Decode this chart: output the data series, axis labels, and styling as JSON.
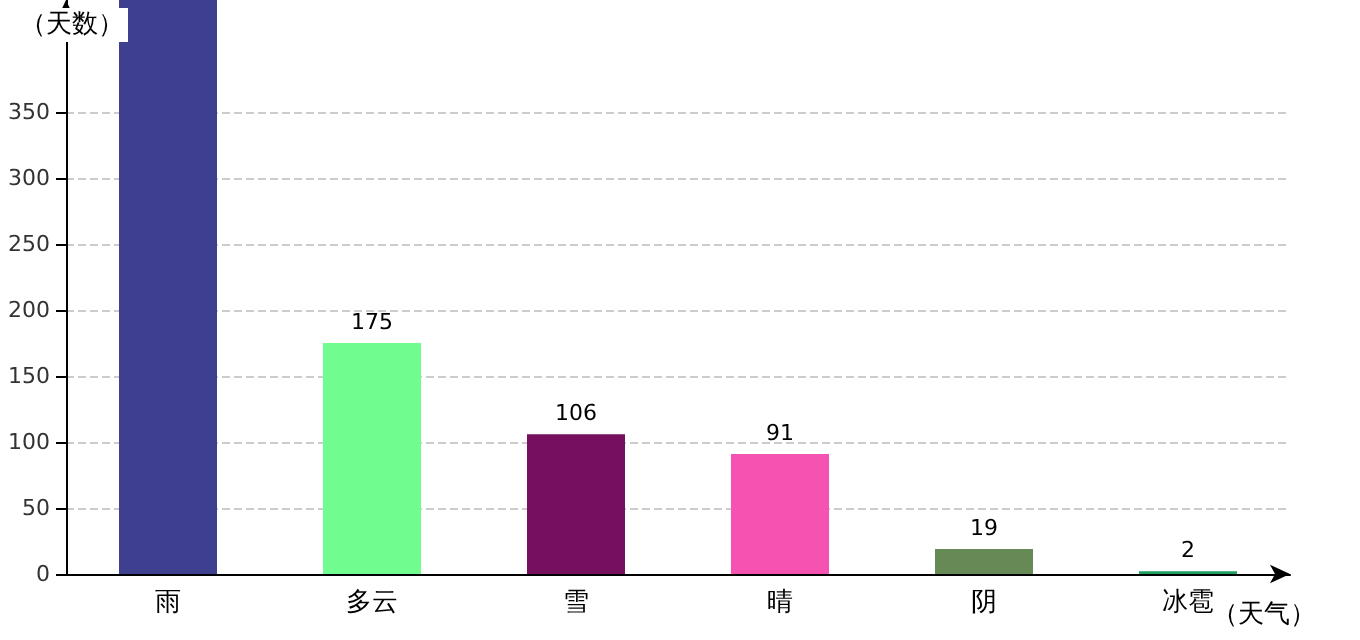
{
  "chart_data": {
    "type": "bar",
    "ylabel": "（天数）",
    "xlabel": "（天气）",
    "categories": [
      "雨",
      "多云",
      "雪",
      "晴",
      "阴",
      "冰雹"
    ],
    "values": [
      435,
      175,
      106,
      91,
      19,
      2
    ],
    "colors": [
      "#3f3f8f",
      "#70fc8f",
      "#770f5f",
      "#f652b2",
      "#668a55",
      "#1f9f5f"
    ],
    "value_labels": [
      null,
      "175",
      "106",
      "91",
      "19",
      "2"
    ],
    "ylim": [
      0,
      435
    ],
    "yticks": [
      0,
      50,
      100,
      150,
      200,
      250,
      300,
      350
    ],
    "grid": "y"
  }
}
